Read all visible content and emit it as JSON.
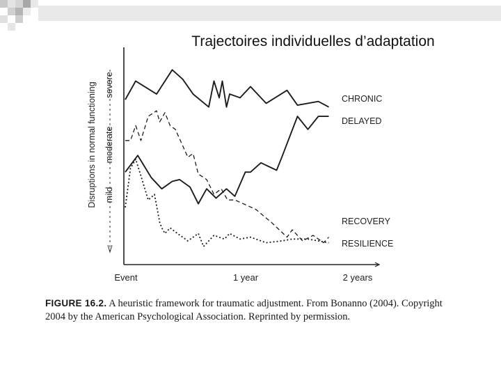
{
  "slide": {
    "title": "Trajectoires individuelles d’adaptation"
  },
  "chart_data": {
    "type": "line",
    "ylabel": "Disruptions in normal functioning",
    "y_levels": [
      "mild",
      "moderate",
      "severe"
    ],
    "x_ticks": [
      "Event",
      "1 year",
      "2 years"
    ],
    "xlim": [
      0,
      2
    ],
    "ylim": [
      0,
      10
    ],
    "series": [
      {
        "name": "CHRONIC",
        "style": "solid",
        "x": [
          0,
          0.1,
          0.3,
          0.45,
          0.55,
          0.65,
          0.8,
          0.85,
          0.9,
          0.93,
          0.97,
          1.0,
          1.1,
          1.2,
          1.35,
          1.55,
          1.65,
          1.85,
          1.95
        ],
        "y": [
          8.2,
          9.2,
          8.5,
          9.8,
          9.3,
          8.5,
          7.8,
          9.2,
          8.3,
          9.2,
          7.8,
          8.5,
          8.3,
          8.9,
          8.0,
          8.7,
          7.9,
          8.1,
          7.8
        ]
      },
      {
        "name": "DELAYED",
        "style": "solid",
        "x": [
          0,
          0.12,
          0.25,
          0.35,
          0.45,
          0.52,
          0.62,
          0.7,
          0.78,
          0.87,
          0.97,
          1.05,
          1.15,
          1.2,
          1.3,
          1.45,
          1.5,
          1.65,
          1.75,
          1.85,
          1.95
        ],
        "y": [
          4.3,
          5.2,
          4.0,
          3.4,
          3.8,
          3.9,
          3.5,
          2.6,
          3.4,
          2.9,
          3.4,
          3.0,
          4.3,
          4.3,
          4.8,
          4.4,
          5.1,
          7.3,
          6.6,
          7.3,
          7.3
        ]
      },
      {
        "name": "RECOVERY",
        "style": "dashed",
        "x": [
          0,
          0.05,
          0.1,
          0.15,
          0.22,
          0.3,
          0.33,
          0.38,
          0.43,
          0.48,
          0.6,
          0.65,
          0.7,
          0.78,
          0.85,
          0.92,
          0.98,
          1.05,
          1.25,
          1.4,
          1.55,
          1.6,
          1.7,
          1.8,
          1.9,
          1.95
        ],
        "y": [
          6.0,
          6.0,
          6.8,
          6.0,
          7.3,
          7.6,
          7.0,
          7.5,
          6.8,
          6.6,
          5.1,
          5.3,
          4.2,
          3.9,
          3.1,
          3.4,
          2.8,
          2.8,
          2.3,
          1.6,
          0.8,
          1.2,
          0.6,
          0.9,
          0.5,
          0.8
        ]
      },
      {
        "name": "RESILIENCE",
        "style": "dotted",
        "x": [
          0,
          0.05,
          0.1,
          0.15,
          0.22,
          0.28,
          0.33,
          0.35,
          0.38,
          0.43,
          0.5,
          0.6,
          0.7,
          0.75,
          0.85,
          0.95,
          1.0,
          1.1,
          1.2,
          1.35,
          1.5,
          1.6,
          1.75,
          1.85,
          1.95
        ],
        "y": [
          2.4,
          4.5,
          5.0,
          4.1,
          2.8,
          3.1,
          1.6,
          1.3,
          1.0,
          1.3,
          1.0,
          0.6,
          1.0,
          0.3,
          0.9,
          0.7,
          1.0,
          0.7,
          0.8,
          0.5,
          0.6,
          0.7,
          0.7,
          0.6,
          0.5
        ]
      }
    ],
    "grid": false,
    "legend": "labels at line ends, right"
  },
  "caption": {
    "figure": "FIGURE 16.2.",
    "text": "A heuristic framework for traumatic adjustment. From Bonanno (2004). Copyright 2004 by the American Psychological Association. Reprinted by permission."
  }
}
